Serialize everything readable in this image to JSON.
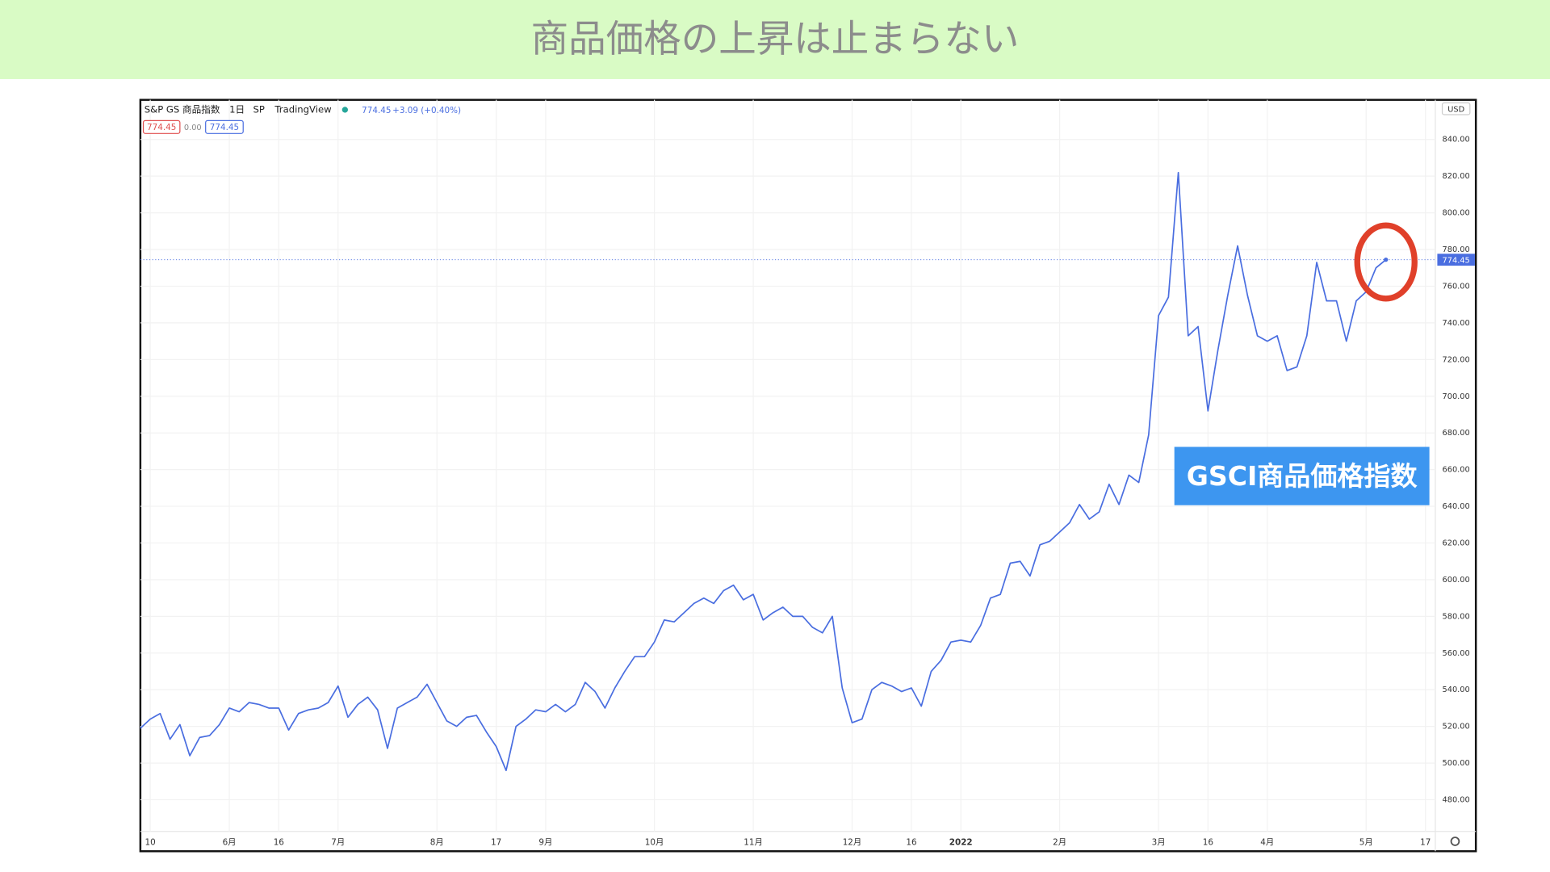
{
  "header": {
    "title": "商品価格の上昇は止まらない"
  },
  "chart_data": {
    "type": "line",
    "symbol": "S&P GS 商品指数",
    "interval": "1日",
    "exchange": "SP",
    "source": "TradingView",
    "last_label": "774.45",
    "change_label": "+3.09 (+0.40%)",
    "status_labels": [
      "774.45",
      "0.00",
      "774.45"
    ],
    "currency": "USD",
    "price_tag": "774.45",
    "annotation": "GSCI商品価格指数",
    "color": "#4a6ee0",
    "grid": true,
    "categories": [
      null,
      "10",
      null,
      null,
      null,
      null,
      null,
      null,
      null,
      "6月",
      null,
      null,
      null,
      null,
      "16",
      null,
      null,
      null,
      null,
      null,
      "7月",
      null,
      null,
      null,
      null,
      null,
      null,
      null,
      null,
      null,
      "8月",
      null,
      null,
      null,
      null,
      null,
      "17",
      null,
      null,
      null,
      null,
      "9月",
      null,
      null,
      null,
      null,
      null,
      null,
      null,
      null,
      null,
      null,
      "10月",
      null,
      null,
      null,
      null,
      null,
      null,
      null,
      null,
      null,
      "11月",
      null,
      null,
      null,
      null,
      null,
      null,
      null,
      null,
      null,
      "12月",
      null,
      null,
      null,
      null,
      null,
      "16",
      null,
      null,
      null,
      null,
      "2022",
      null,
      null,
      null,
      null,
      null,
      null,
      null,
      null,
      null,
      "2月",
      null,
      null,
      null,
      null,
      null,
      null,
      null,
      null,
      null,
      "3月",
      null,
      null,
      null,
      null,
      "16",
      null,
      null,
      null,
      null,
      null,
      "4月",
      null,
      null,
      null,
      null,
      null,
      null,
      null,
      null,
      null,
      "5月",
      null,
      null,
      null,
      null,
      null,
      "17"
    ],
    "values": [
      519,
      524,
      527,
      513,
      521,
      504,
      514,
      515,
      521,
      530,
      528,
      533,
      532,
      530,
      530,
      518,
      527,
      529,
      530,
      533,
      542,
      525,
      532,
      536,
      529,
      508,
      530,
      533,
      536,
      543,
      533,
      523,
      520,
      525,
      526,
      517,
      509,
      496,
      520,
      524,
      529,
      528,
      532,
      528,
      532,
      544,
      539,
      530,
      541,
      550,
      558,
      558,
      566,
      578,
      577,
      582,
      587,
      590,
      587,
      594,
      597,
      589,
      592,
      578,
      582,
      585,
      580,
      580,
      574,
      571,
      580,
      541,
      522,
      524,
      540,
      544,
      542,
      539,
      541,
      531,
      550,
      556,
      566,
      567,
      566,
      575,
      590,
      592,
      609,
      610,
      602,
      619,
      621,
      626,
      631,
      641,
      633,
      637,
      652,
      641,
      657,
      653,
      679,
      744,
      754,
      822,
      733,
      738,
      692,
      725,
      755,
      782,
      755,
      733,
      730,
      733,
      714,
      716,
      733,
      773,
      752,
      752,
      730,
      752,
      757,
      770,
      774.45,
      null,
      null,
      null,
      null
    ],
    "ylim": [
      451.4,
      861.6
    ],
    "yticks": [
      {
        "value": 480,
        "label": "480.00"
      },
      {
        "value": 500,
        "label": "500.00"
      },
      {
        "value": 520,
        "label": "520.00"
      },
      {
        "value": 540,
        "label": "540.00"
      },
      {
        "value": 560,
        "label": "560.00"
      },
      {
        "value": 580,
        "label": "580.00"
      },
      {
        "value": 600,
        "label": "600.00"
      },
      {
        "value": 620,
        "label": "620.00"
      },
      {
        "value": 640,
        "label": "640.00"
      },
      {
        "value": 660,
        "label": "660.00"
      },
      {
        "value": 680,
        "label": "680.00"
      },
      {
        "value": 700,
        "label": "700.00"
      },
      {
        "value": 720,
        "label": "720.00"
      },
      {
        "value": 740,
        "label": "740.00"
      },
      {
        "value": 760,
        "label": "760.00"
      },
      {
        "value": 780,
        "label": "780.00"
      },
      {
        "value": 800,
        "label": "800.00"
      },
      {
        "value": 820,
        "label": "820.00"
      },
      {
        "value": 840,
        "label": "840.00"
      }
    ]
  }
}
